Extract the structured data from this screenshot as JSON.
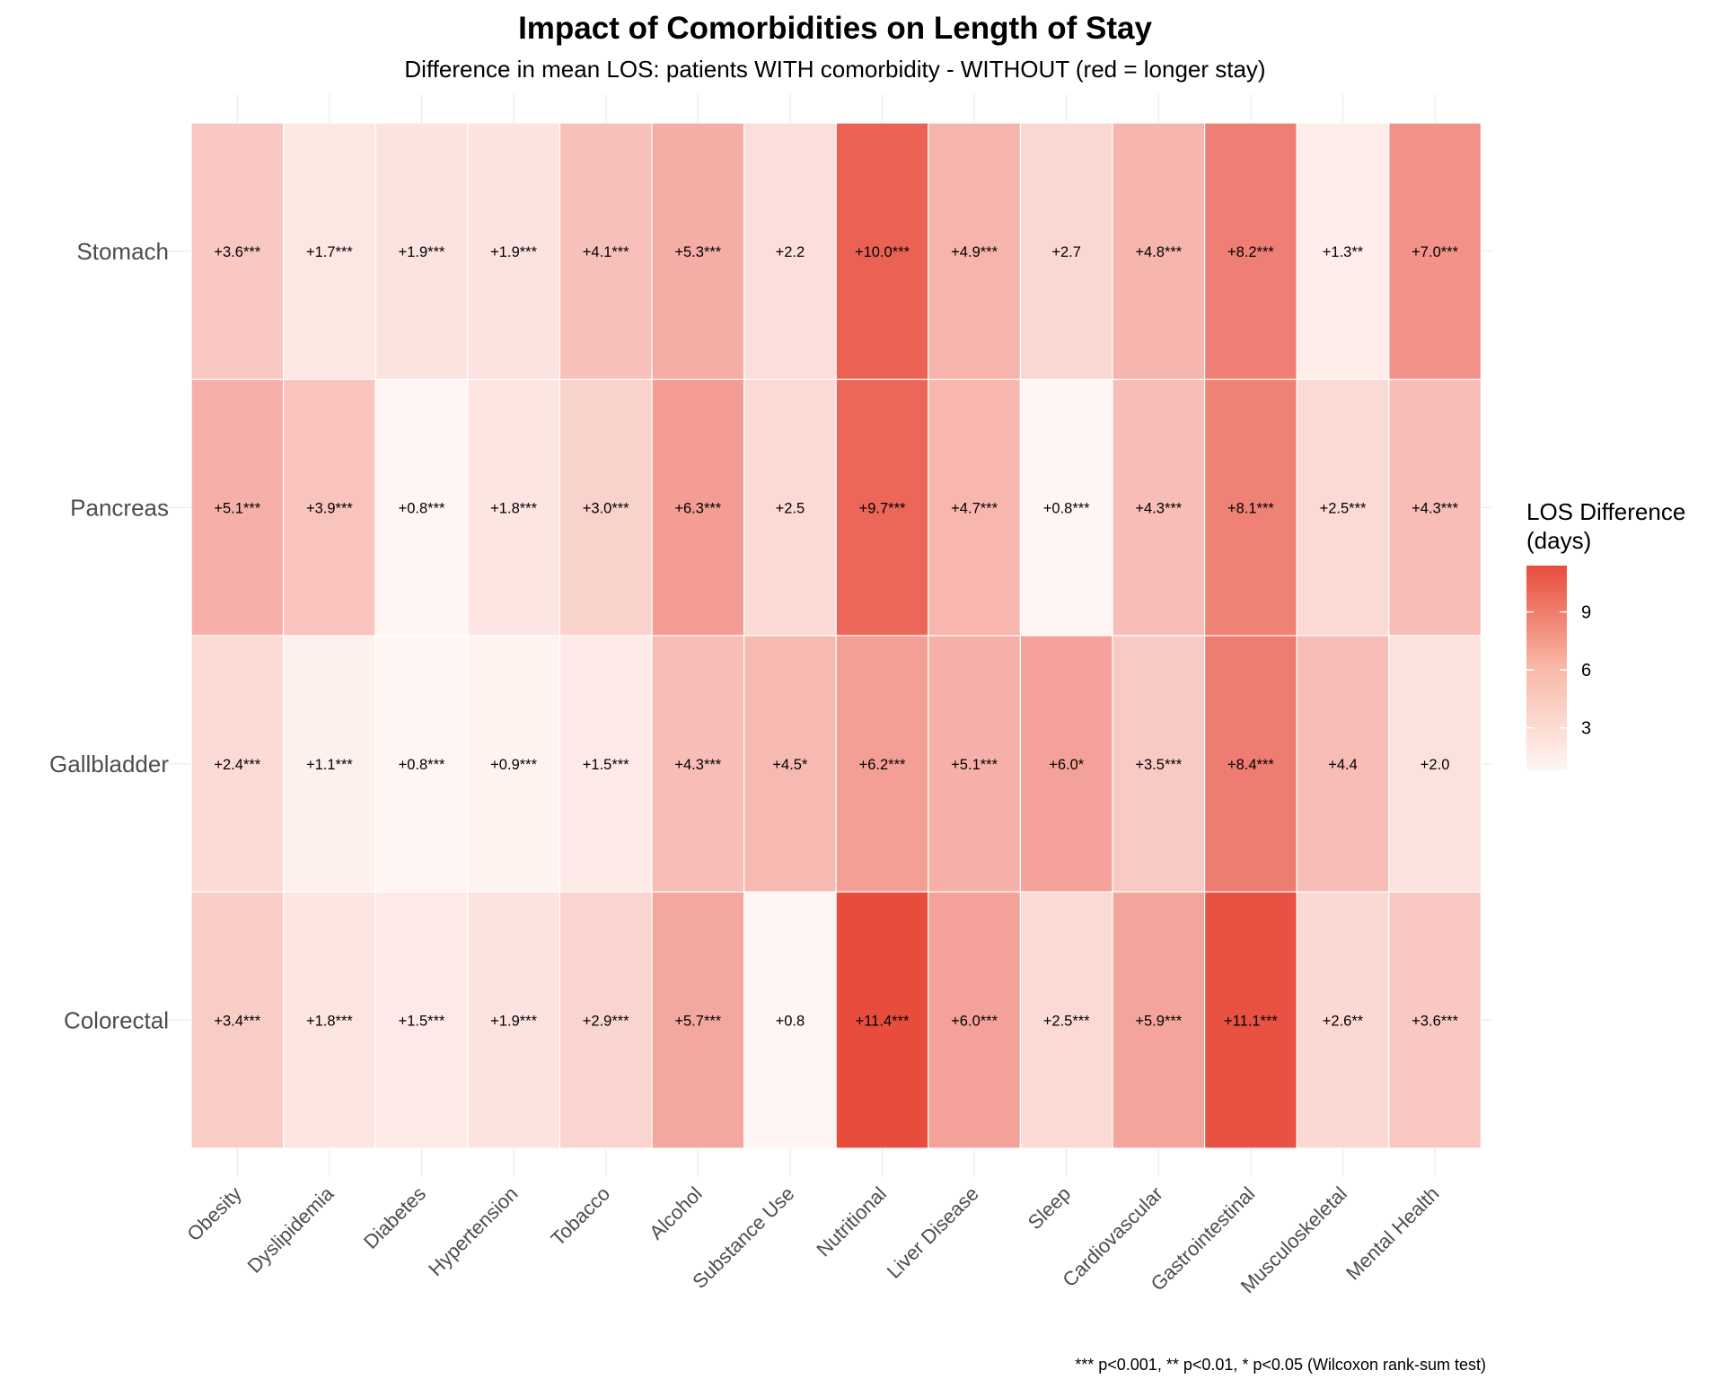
{
  "chart_data": {
    "type": "heatmap",
    "title": "Impact of Comorbidities on Length of Stay",
    "subtitle": "Difference in mean LOS: patients WITH comorbidity - WITHOUT (red = longer stay)",
    "caption": "*** p<0.001, ** p<0.01, * p<0.05 (Wilcoxon rank-sum test)",
    "x_categories": [
      "Obesity",
      "Dyslipidemia",
      "Diabetes",
      "Hypertension",
      "Tobacco",
      "Alcohol",
      "Substance Use",
      "Nutritional",
      "Liver Disease",
      "Sleep",
      "Cardiovascular",
      "Gastrointestinal",
      "Musculoskeletal",
      "Mental Health"
    ],
    "y_categories": [
      "Stomach",
      "Pancreas",
      "Gallbladder",
      "Colorectal"
    ],
    "values": [
      [
        3.6,
        1.7,
        1.9,
        1.9,
        4.1,
        5.3,
        2.2,
        10.0,
        4.9,
        2.7,
        4.8,
        8.2,
        1.3,
        7.0
      ],
      [
        5.1,
        3.9,
        0.8,
        1.8,
        3.0,
        6.3,
        2.5,
        9.7,
        4.7,
        0.8,
        4.3,
        8.1,
        2.5,
        4.3
      ],
      [
        2.4,
        1.1,
        0.8,
        0.9,
        1.5,
        4.3,
        4.5,
        6.2,
        5.1,
        6.0,
        3.5,
        8.4,
        4.4,
        2.0
      ],
      [
        3.4,
        1.8,
        1.5,
        1.9,
        2.9,
        5.7,
        0.8,
        11.4,
        6.0,
        2.5,
        5.9,
        11.1,
        2.6,
        3.6
      ]
    ],
    "labels": [
      [
        "+3.6***",
        "+1.7***",
        "+1.9***",
        "+1.9***",
        "+4.1***",
        "+5.3***",
        "+2.2",
        "+10.0***",
        "+4.9***",
        "+2.7",
        "+4.8***",
        "+8.2***",
        "+1.3**",
        "+7.0***"
      ],
      [
        "+5.1***",
        "+3.9***",
        "+0.8***",
        "+1.8***",
        "+3.0***",
        "+6.3***",
        "+2.5",
        "+9.7***",
        "+4.7***",
        "+0.8***",
        "+4.3***",
        "+8.1***",
        "+2.5***",
        "+4.3***"
      ],
      [
        "+2.4***",
        "+1.1***",
        "+0.8***",
        "+0.9***",
        "+1.5***",
        "+4.3***",
        "+4.5*",
        "+6.2***",
        "+5.1***",
        "+6.0*",
        "+3.5***",
        "+8.4***",
        "+4.4",
        "+2.0"
      ],
      [
        "+3.4***",
        "+1.8***",
        "+1.5***",
        "+1.9***",
        "+2.9***",
        "+5.7***",
        "+0.8",
        "+11.4***",
        "+6.0***",
        "+2.5***",
        "+5.9***",
        "+11.1***",
        "+2.6**",
        "+3.6***"
      ]
    ],
    "legend": {
      "title": [
        "LOS Difference",
        "(days)"
      ],
      "ticks": [
        3,
        6,
        9
      ],
      "range": [
        0.8,
        11.4
      ],
      "low_color": "#fff5f2",
      "high_color": "#e84c3d",
      "placement": "right"
    },
    "grid": true
  }
}
